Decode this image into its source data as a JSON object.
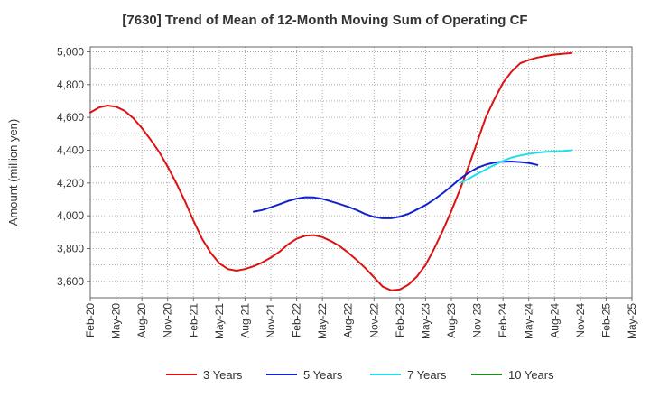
{
  "chart_data": {
    "type": "line",
    "title": "[7630]  Trend of Mean of 12-Month Moving Sum of Operating CF",
    "xlabel": "",
    "ylabel": "Amount (million yen)",
    "ylim": [
      3500,
      5030
    ],
    "yticks": [
      3600,
      3800,
      4000,
      4200,
      4400,
      4600,
      4800,
      5000
    ],
    "ytick_labels": [
      "3,600",
      "3,800",
      "4,000",
      "4,200",
      "4,400",
      "4,600",
      "4,800",
      "5,000"
    ],
    "xticks": [
      "Feb-20",
      "May-20",
      "Aug-20",
      "Nov-20",
      "Feb-21",
      "May-21",
      "Aug-21",
      "Nov-21",
      "Feb-22",
      "May-22",
      "Aug-22",
      "Nov-22",
      "Feb-23",
      "May-23",
      "Aug-23",
      "Nov-23",
      "Feb-24",
      "May-24",
      "Aug-24",
      "Nov-24",
      "Feb-25",
      "May-25"
    ],
    "grid": true,
    "legend_position": "bottom",
    "series": [
      {
        "name": "3 Years",
        "color": "#dd1111",
        "start": 0,
        "values": [
          4630,
          4660,
          4672,
          4665,
          4640,
          4595,
          4535,
          4465,
          4390,
          4300,
          4200,
          4090,
          3970,
          3860,
          3775,
          3710,
          3675,
          3665,
          3675,
          3692,
          3715,
          3745,
          3780,
          3825,
          3860,
          3878,
          3882,
          3870,
          3845,
          3815,
          3775,
          3730,
          3680,
          3625,
          3568,
          3545,
          3550,
          3580,
          3630,
          3700,
          3800,
          3910,
          4030,
          4160,
          4300,
          4450,
          4600,
          4710,
          4810,
          4880,
          4930,
          4950,
          4965,
          4975,
          4983,
          4988,
          4992
        ]
      },
      {
        "name": "5 Years",
        "color": "#1122cc",
        "start": 19,
        "values": [
          4025,
          4035,
          4052,
          4070,
          4090,
          4105,
          4113,
          4112,
          4103,
          4088,
          4072,
          4055,
          4035,
          4010,
          3993,
          3985,
          3985,
          3995,
          4012,
          4038,
          4065,
          4100,
          4138,
          4180,
          4225,
          4262,
          4292,
          4312,
          4325,
          4330,
          4331,
          4328,
          4322,
          4310
        ]
      },
      {
        "name": "7 Years",
        "color": "#22ddee",
        "start": 43,
        "values": [
          4200,
          4225,
          4255,
          4282,
          4310,
          4335,
          4355,
          4368,
          4378,
          4385,
          4390,
          4392,
          4395,
          4400
        ]
      },
      {
        "name": "10 Years",
        "color": "#228822",
        "start": 0,
        "values": []
      }
    ]
  }
}
